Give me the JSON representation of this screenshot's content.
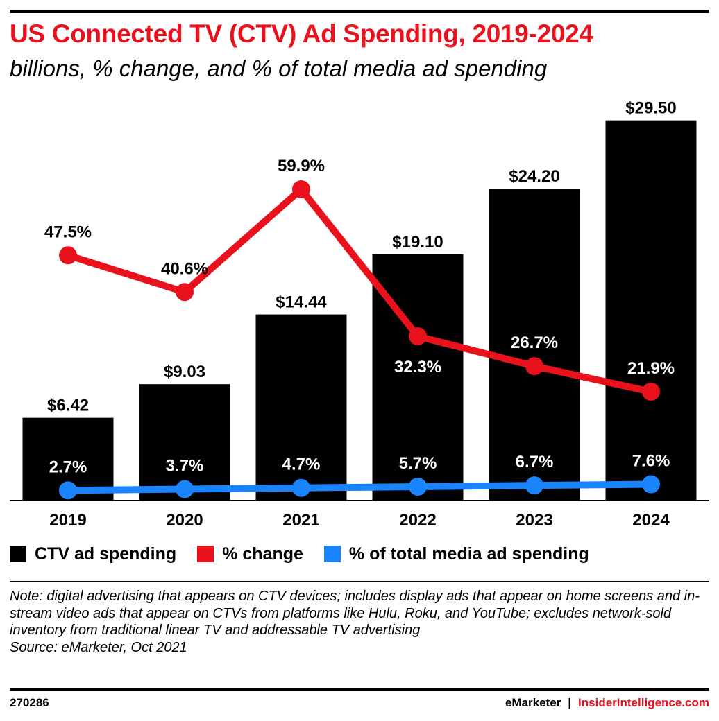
{
  "header": {
    "title": "US Connected TV (CTV) Ad Spending, 2019-2024",
    "subtitle": "billions, % change, and % of total media ad spending"
  },
  "legend": {
    "items": [
      {
        "label": "CTV ad spending",
        "color": "#000000"
      },
      {
        "label": "% change",
        "color": "#e8111c"
      },
      {
        "label": "% of total media ad spending",
        "color": "#1a84ff"
      }
    ]
  },
  "chart_data": {
    "type": "bar",
    "categories": [
      "2019",
      "2020",
      "2021",
      "2022",
      "2023",
      "2024"
    ],
    "series": [
      {
        "name": "CTV ad spending",
        "type": "bar",
        "color": "#000000",
        "values": [
          6.42,
          9.03,
          14.44,
          19.1,
          24.2,
          29.5
        ],
        "labels": [
          "$6.42",
          "$9.03",
          "$14.44",
          "$19.10",
          "$24.20",
          "$29.50"
        ]
      },
      {
        "name": "% change",
        "type": "line",
        "color": "#e8111c",
        "values": [
          47.5,
          40.6,
          59.9,
          32.3,
          26.7,
          21.9
        ],
        "labels": [
          "47.5%",
          "40.6%",
          "59.9%",
          "32.3%",
          "26.7%",
          "21.9%"
        ]
      },
      {
        "name": "% of total media ad spending",
        "type": "line",
        "color": "#1a84ff",
        "values": [
          2.7,
          3.7,
          4.7,
          5.7,
          6.7,
          7.6
        ],
        "labels": [
          "2.7%",
          "3.7%",
          "4.7%",
          "5.7%",
          "6.7%",
          "7.6%"
        ]
      }
    ],
    "grid": false,
    "legend_position": "bottom-left"
  },
  "note": "Note: digital advertising that appears on CTV devices; includes display ads that appear on home screens and in-stream video ads that appear on CTVs from platforms like Hulu, Roku, and YouTube; excludes network-sold inventory from traditional linear TV and addressable TV advertising",
  "source": "Source: eMarketer, Oct 2021",
  "footer": {
    "chart_id": "270286",
    "brand_left": "eMarketer",
    "brand_sep": "|",
    "brand_right": "InsiderIntelligence.com"
  }
}
